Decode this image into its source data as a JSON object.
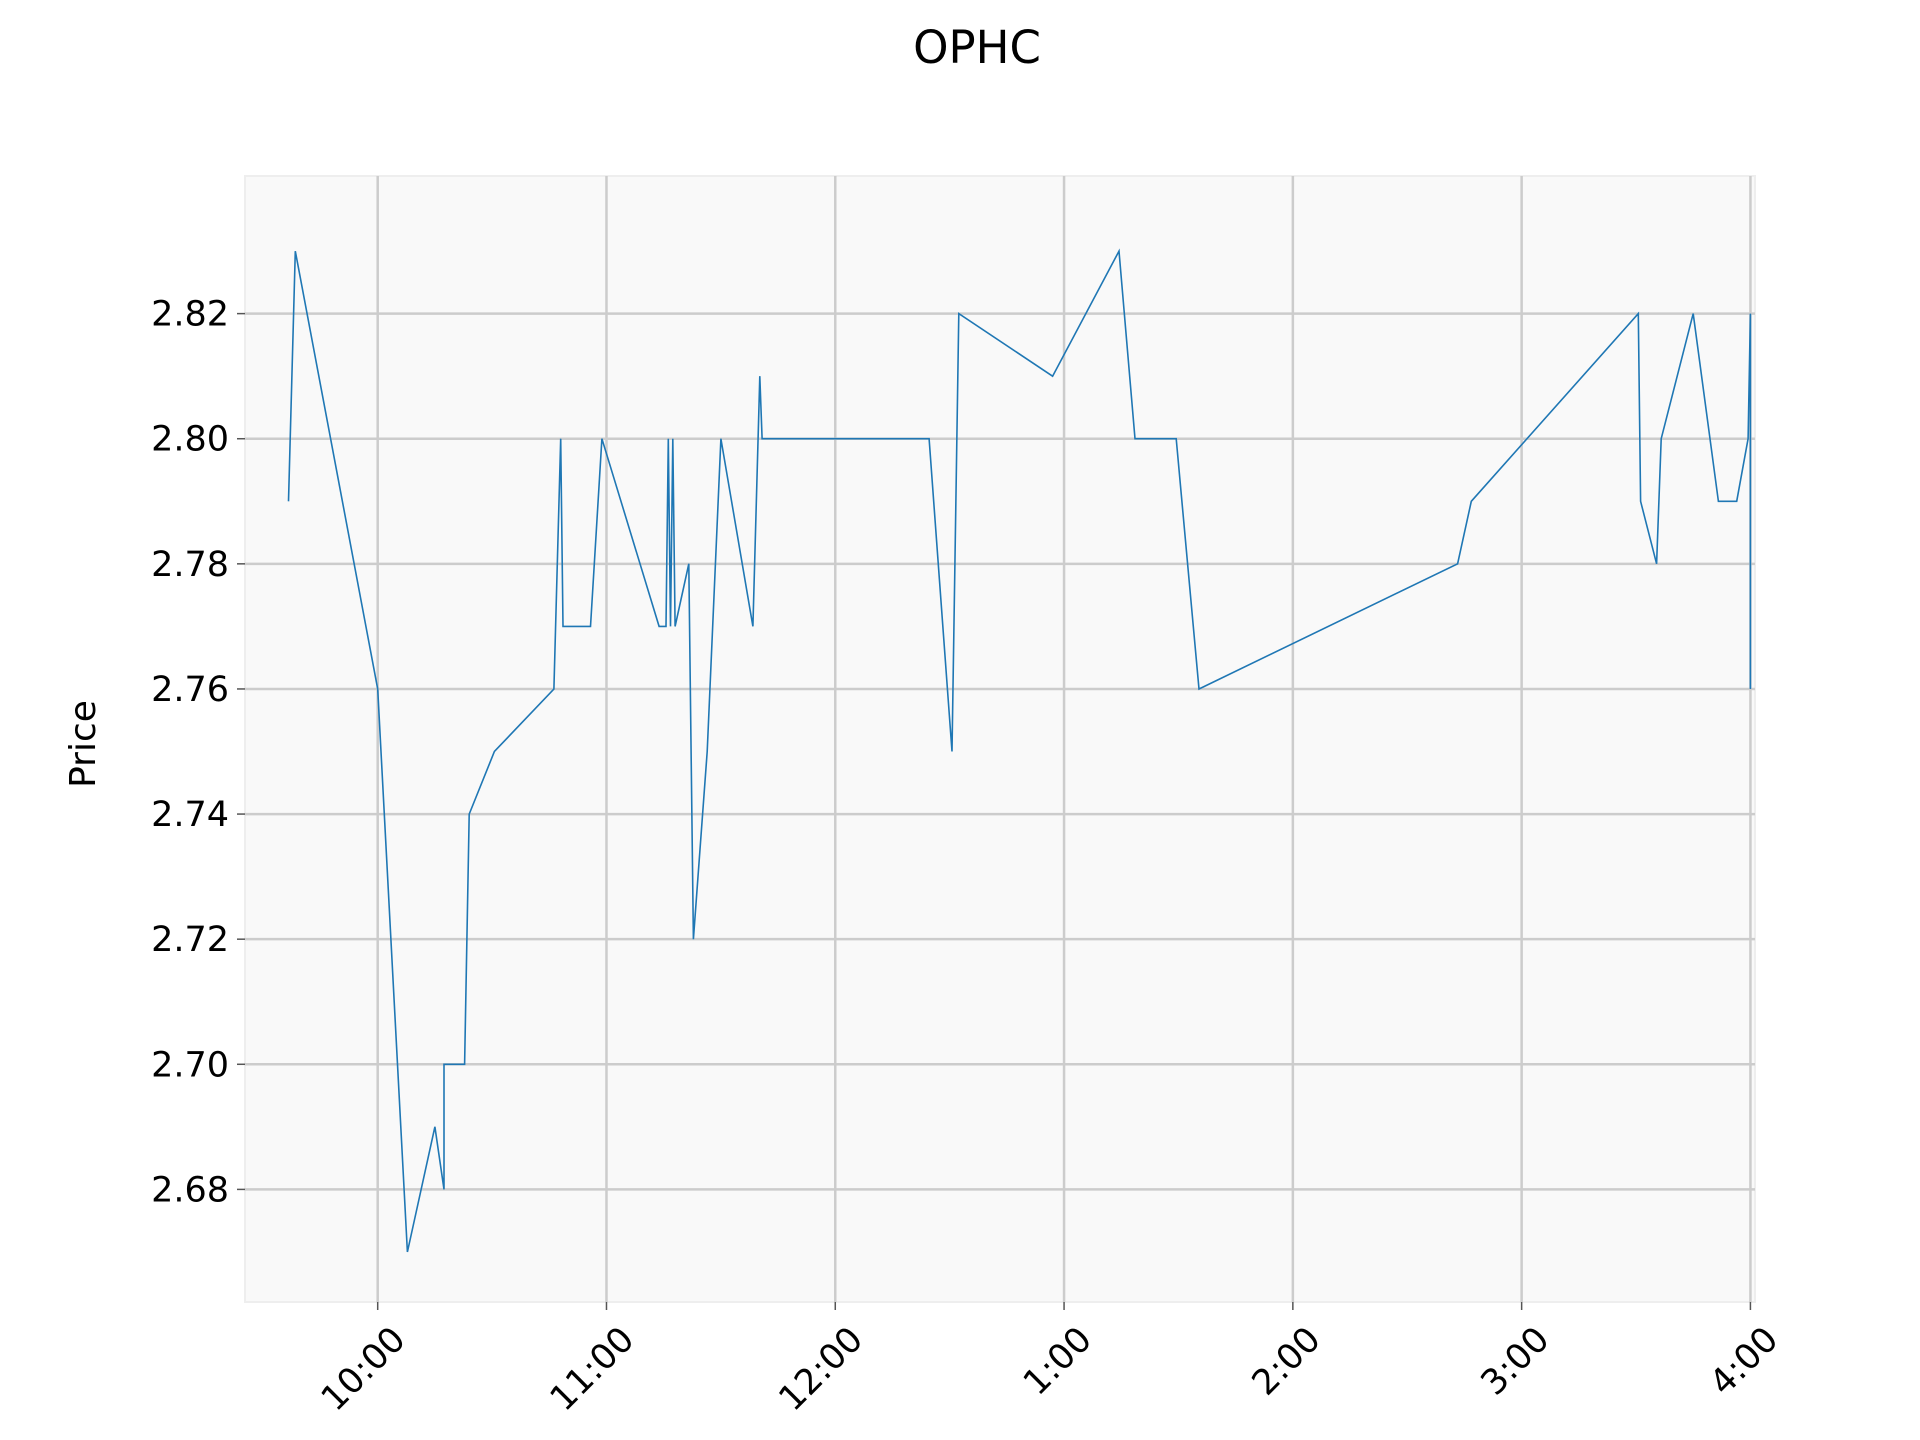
{
  "chart_data": {
    "type": "line",
    "title": "OPHC",
    "xlabel": "",
    "ylabel": "Price",
    "x_unit": "hours after 9:00 (display: trading-day clock)",
    "xlim": [
      9.42,
      16.02
    ],
    "ylim": [
      2.662,
      2.842
    ],
    "grid": true,
    "legend": "none",
    "line_color": "#1f77b4",
    "x_ticks": [
      {
        "value": 10,
        "label": "10:00"
      },
      {
        "value": 11,
        "label": "11:00"
      },
      {
        "value": 12,
        "label": "12:00"
      },
      {
        "value": 13,
        "label": "1:00"
      },
      {
        "value": 14,
        "label": "2:00"
      },
      {
        "value": 15,
        "label": "3:00"
      },
      {
        "value": 16,
        "label": "4:00"
      }
    ],
    "y_ticks": [
      {
        "value": 2.68,
        "label": "2.68"
      },
      {
        "value": 2.7,
        "label": "2.70"
      },
      {
        "value": 2.72,
        "label": "2.72"
      },
      {
        "value": 2.74,
        "label": "2.74"
      },
      {
        "value": 2.76,
        "label": "2.76"
      },
      {
        "value": 2.78,
        "label": "2.78"
      },
      {
        "value": 2.8,
        "label": "2.80"
      },
      {
        "value": 2.82,
        "label": "2.82"
      }
    ],
    "series": [
      {
        "name": "",
        "x": [
          9.61,
          9.64,
          10.0,
          10.13,
          10.25,
          10.29,
          10.29,
          10.38,
          10.4,
          10.51,
          10.77,
          10.8,
          10.81,
          10.93,
          10.98,
          11.23,
          11.26,
          11.27,
          11.28,
          11.29,
          11.3,
          11.36,
          11.38,
          11.44,
          11.5,
          11.64,
          11.67,
          11.68,
          11.69,
          12.41,
          12.51,
          12.54,
          12.95,
          13.24,
          13.31,
          13.49,
          13.59,
          14.72,
          14.78,
          15.51,
          15.52,
          15.59,
          15.61,
          15.75,
          15.86,
          15.94,
          15.99,
          16.0,
          16.0,
          16.0
        ],
        "y": [
          2.79,
          2.83,
          2.76,
          2.67,
          2.69,
          2.68,
          2.7,
          2.7,
          2.74,
          2.75,
          2.76,
          2.8,
          2.77,
          2.77,
          2.8,
          2.77,
          2.77,
          2.8,
          2.77,
          2.8,
          2.77,
          2.78,
          2.72,
          2.75,
          2.8,
          2.77,
          2.81,
          2.8,
          2.8,
          2.8,
          2.75,
          2.82,
          2.81,
          2.83,
          2.8,
          2.8,
          2.76,
          2.78,
          2.79,
          2.82,
          2.79,
          2.78,
          2.8,
          2.82,
          2.79,
          2.79,
          2.8,
          2.82,
          2.76,
          2.79
        ]
      }
    ]
  }
}
